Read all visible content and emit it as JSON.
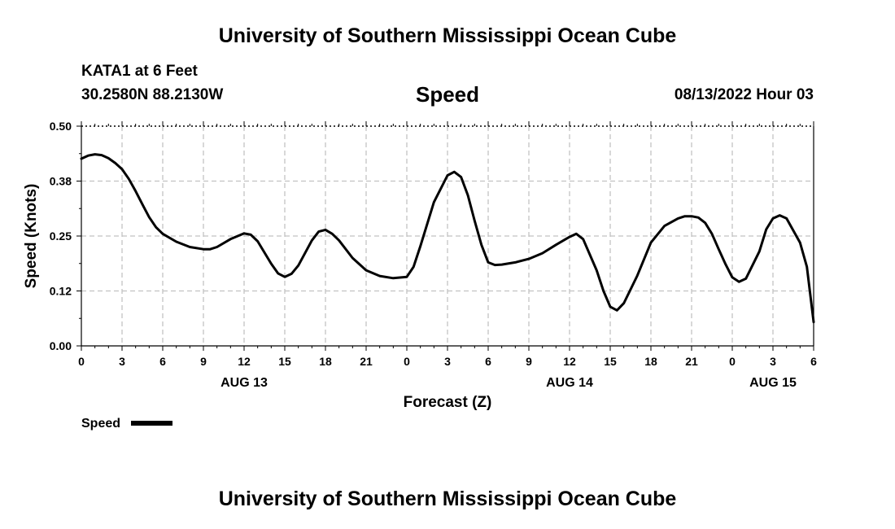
{
  "header": {
    "top_title": "University of Southern Mississippi Ocean Cube",
    "station": "KATA1 at 6 Feet",
    "coordinates": "30.2580N  88.2130W",
    "timestamp": "08/13/2022 Hour 03",
    "bottom_title": "University of Southern Mississippi Ocean Cube"
  },
  "chart_data": {
    "type": "line",
    "title": "Speed",
    "xlabel": "Forecast (Z)",
    "ylabel": "Speed (Knots)",
    "ylim": [
      0,
      0.5
    ],
    "xlim": [
      0,
      54
    ],
    "yticks": [
      "0.00",
      "0.12",
      "0.25",
      "0.38",
      "0.50"
    ],
    "xticks": [
      "0",
      "3",
      "6",
      "9",
      "12",
      "15",
      "18",
      "21",
      "0",
      "3",
      "6",
      "9",
      "12",
      "15",
      "18",
      "21",
      "0",
      "3",
      "6"
    ],
    "day_labels": [
      {
        "label": "AUG 13",
        "hour": 12
      },
      {
        "label": "AUG 14",
        "hour": 36
      },
      {
        "label": "AUG 15",
        "hour": 51
      }
    ],
    "grid": true,
    "legend": {
      "position": "bottom-left",
      "entries": [
        "Speed"
      ]
    },
    "series": [
      {
        "name": "Speed",
        "color": "#000000",
        "x": [
          0,
          0.5,
          1,
          1.5,
          2,
          2.5,
          3,
          3.5,
          4,
          4.5,
          5,
          5.5,
          6,
          7,
          8,
          9,
          9.5,
          10,
          11,
          12,
          12.5,
          13,
          14,
          14.5,
          15,
          15.5,
          16,
          17,
          17.5,
          18,
          18.5,
          19,
          20,
          21,
          22,
          23,
          24,
          24.5,
          25,
          26,
          27,
          27.5,
          28,
          28.5,
          29,
          29.5,
          30,
          30.5,
          31,
          32,
          33,
          34,
          35,
          36,
          36.5,
          37,
          38,
          38.5,
          39,
          39.5,
          40,
          41,
          42,
          43,
          44,
          44.5,
          45,
          45.5,
          46,
          46.5,
          47,
          47.5,
          48,
          48.5,
          49,
          50,
          50.5,
          51,
          51.5,
          52,
          53,
          53.5,
          54
        ],
        "y": [
          0.426,
          0.433,
          0.436,
          0.434,
          0.427,
          0.416,
          0.402,
          0.38,
          0.352,
          0.322,
          0.293,
          0.27,
          0.255,
          0.237,
          0.225,
          0.22,
          0.22,
          0.225,
          0.243,
          0.256,
          0.253,
          0.238,
          0.187,
          0.165,
          0.157,
          0.164,
          0.183,
          0.24,
          0.26,
          0.264,
          0.255,
          0.24,
          0.2,
          0.172,
          0.159,
          0.154,
          0.157,
          0.18,
          0.227,
          0.327,
          0.388,
          0.396,
          0.384,
          0.343,
          0.285,
          0.23,
          0.19,
          0.184,
          0.185,
          0.19,
          0.198,
          0.211,
          0.23,
          0.248,
          0.255,
          0.243,
          0.172,
          0.125,
          0.089,
          0.081,
          0.097,
          0.16,
          0.235,
          0.273,
          0.29,
          0.295,
          0.295,
          0.292,
          0.28,
          0.255,
          0.22,
          0.186,
          0.156,
          0.146,
          0.153,
          0.215,
          0.265,
          0.29,
          0.297,
          0.29,
          0.235,
          0.18,
          0.054
        ]
      }
    ]
  }
}
